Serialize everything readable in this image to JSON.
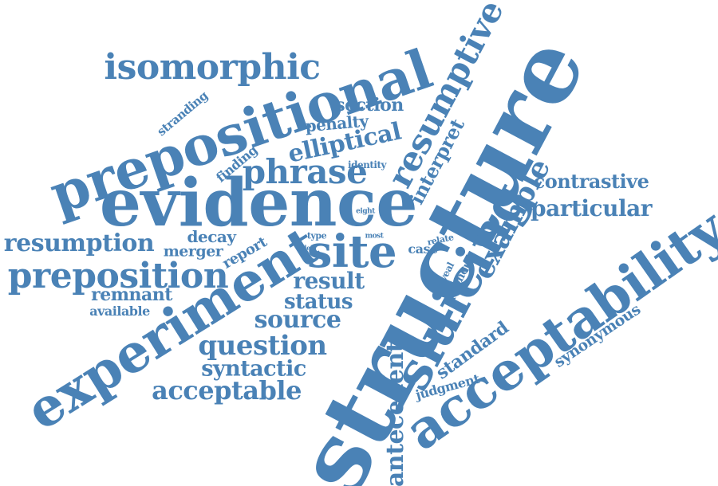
{
  "style": {
    "word_color": "#4a82b6",
    "background": "#ffffff"
  },
  "words": [
    "structure",
    "evidence",
    "prepositional",
    "experiment",
    "acceptability",
    "sluicing",
    "site",
    "preposition",
    "isomorphic",
    "resumptive",
    "phrase",
    "resumption",
    "example",
    "acceptable",
    "question",
    "antecedent",
    "elliptical",
    "particular",
    "source",
    "status",
    "result",
    "syntactic",
    "contrastive",
    "interpret",
    "remnant",
    "section",
    "penalty",
    "standard",
    "synonymous",
    "decay",
    "merger",
    "report",
    "finding",
    "stranding",
    "available",
    "judgment",
    "reveal",
    "pronoun",
    "case",
    "identity",
    "type",
    "relate",
    "most",
    "eight",
    "cleft"
  ]
}
